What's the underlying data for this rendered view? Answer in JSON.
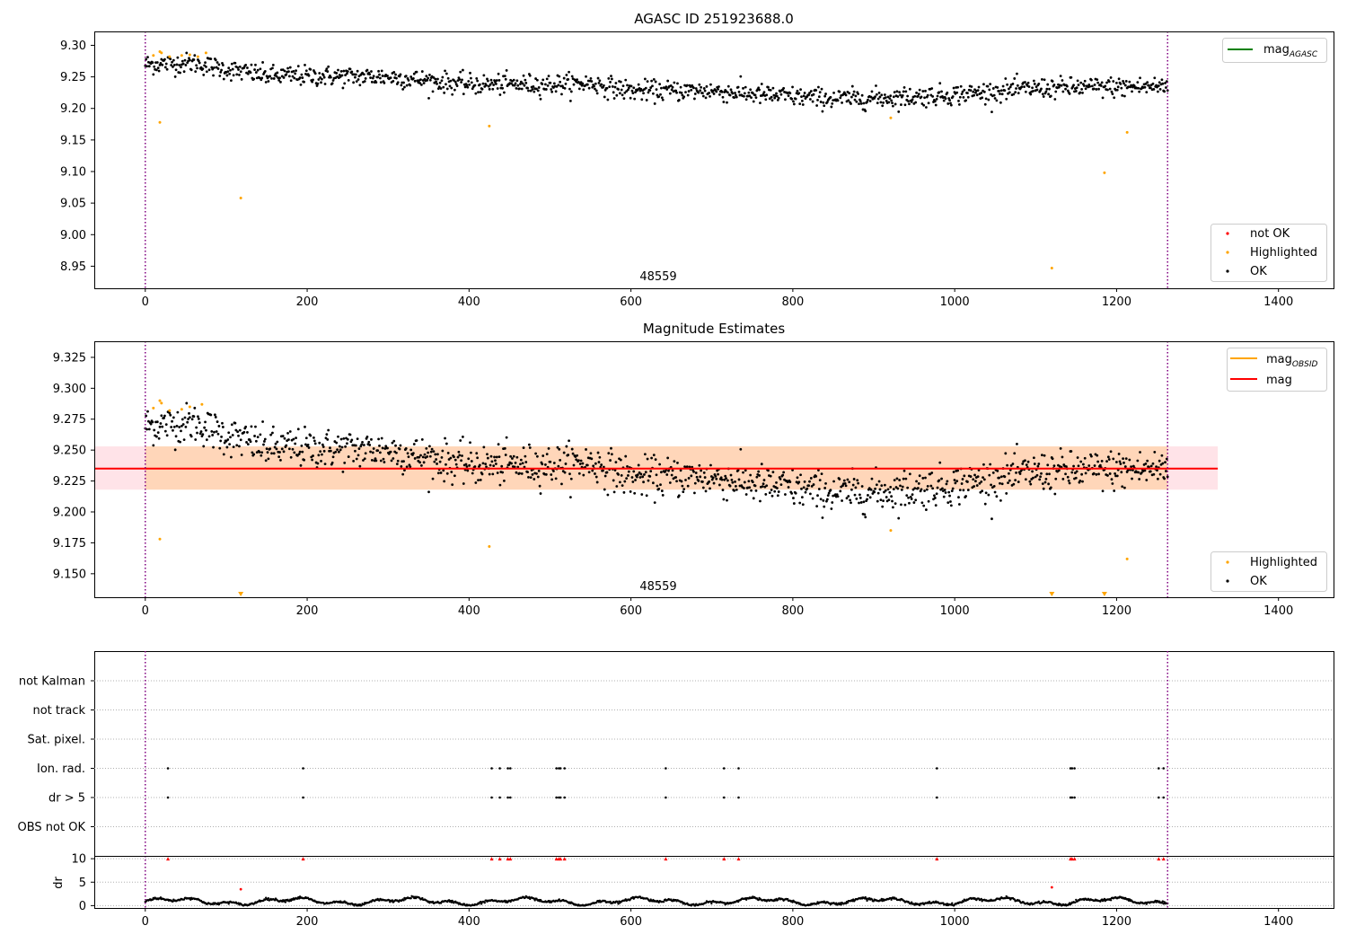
{
  "chart_data": [
    {
      "type": "scatter",
      "title": "AGASC ID 251923688.0",
      "annotation": "48559",
      "xlim": [
        -63,
        1468
      ],
      "ylim": [
        8.915,
        9.322
      ],
      "xticks": [
        0,
        200,
        400,
        600,
        800,
        1000,
        1200,
        1400
      ],
      "xticklabels": [
        "0",
        "200",
        "400",
        "600",
        "800",
        "1000",
        "1200",
        "1400"
      ],
      "yticks": [
        8.95,
        9.0,
        9.05,
        9.1,
        9.15,
        9.2,
        9.25,
        9.3
      ],
      "yticklabels": [
        "8.95",
        "9.00",
        "9.05",
        "9.10",
        "9.15",
        "9.20",
        "9.25",
        "9.30"
      ],
      "vlines": [
        0,
        1263
      ],
      "legend_top": [
        {
          "name": "mag",
          "subscript": "AGASC",
          "color": "#008000",
          "kind": "line"
        }
      ],
      "legend_bottom": [
        {
          "name": "not OK",
          "color": "#ff0000",
          "kind": "dot"
        },
        {
          "name": "Highlighted",
          "color": "#ffa500",
          "kind": "dot"
        },
        {
          "name": "OK",
          "color": "#000000",
          "kind": "dot"
        }
      ],
      "ok_series": {
        "name": "OK",
        "n_points": 1263,
        "x_range": [
          0,
          1263
        ],
        "trend_knots": [
          [
            0,
            9.27
          ],
          [
            60,
            9.272
          ],
          [
            100,
            9.262
          ],
          [
            150,
            9.252
          ],
          [
            300,
            9.25
          ],
          [
            400,
            9.238
          ],
          [
            500,
            9.238
          ],
          [
            550,
            9.24
          ],
          [
            600,
            9.228
          ],
          [
            700,
            9.228
          ],
          [
            780,
            9.22
          ],
          [
            860,
            9.215
          ],
          [
            940,
            9.218
          ],
          [
            1000,
            9.222
          ],
          [
            1100,
            9.232
          ],
          [
            1263,
            9.235
          ]
        ],
        "scatter_sd": 0.008
      },
      "highlighted_points": {
        "x": [
          10,
          18,
          20,
          30,
          45,
          55,
          65,
          75,
          18,
          118,
          425,
          921,
          1120,
          1185,
          1213
        ],
        "y": [
          9.284,
          9.29,
          9.288,
          9.282,
          9.284,
          9.285,
          9.282,
          9.288,
          9.178,
          9.058,
          9.172,
          9.185,
          8.947,
          9.098,
          9.162
        ]
      },
      "not_ok_points": {
        "x": [],
        "y": []
      }
    },
    {
      "type": "scatter",
      "title": "Magnitude Estimates",
      "annotation": "48559",
      "xlim": [
        -63,
        1468
      ],
      "ylim": [
        9.131,
        9.338
      ],
      "xticks": [
        0,
        200,
        400,
        600,
        800,
        1000,
        1200,
        1400
      ],
      "xticklabels": [
        "0",
        "200",
        "400",
        "600",
        "800",
        "1000",
        "1200",
        "1400"
      ],
      "yticks": [
        9.15,
        9.175,
        9.2,
        9.225,
        9.25,
        9.275,
        9.3,
        9.325
      ],
      "yticklabels": [
        "9.150",
        "9.175",
        "9.200",
        "9.225",
        "9.250",
        "9.275",
        "9.300",
        "9.325"
      ],
      "vlines": [
        0,
        1263
      ],
      "mag_line": 9.235,
      "mag_band_outer": {
        "x": [
          -63,
          1325
        ],
        "y": [
          9.218,
          9.253
        ],
        "color": "#ffc0cb"
      },
      "mag_obsid_band": {
        "x": [
          0,
          1263
        ],
        "y": [
          9.218,
          9.253
        ],
        "color": "#ffa500"
      },
      "legend_top": [
        {
          "name": "mag",
          "subscript": "OBSID",
          "color": "#ffa500",
          "kind": "line"
        },
        {
          "name": "mag",
          "color": "#ff0000",
          "kind": "line"
        }
      ],
      "legend_bottom": [
        {
          "name": "Highlighted",
          "color": "#ffa500",
          "kind": "dot"
        },
        {
          "name": "OK",
          "color": "#000000",
          "kind": "dot"
        }
      ],
      "highlighted_points": {
        "x": [
          10,
          18,
          20,
          30,
          45,
          55,
          70,
          18,
          425,
          921,
          1213
        ],
        "y": [
          9.284,
          9.29,
          9.288,
          9.282,
          9.283,
          9.285,
          9.287,
          9.178,
          9.172,
          9.185,
          9.162
        ]
      },
      "offscale_markers": {
        "x": [
          118,
          1120,
          1185
        ],
        "color": "#ffa500"
      }
    },
    {
      "type": "scatter",
      "title": "",
      "xlim": [
        -63,
        1468
      ],
      "categories": [
        "not Kalman",
        "not track",
        "Sat. pixel.",
        "Ion. rad.",
        "dr > 5",
        "OBS not OK"
      ],
      "flag_points": {
        "Ion. rad.": [
          28,
          195,
          428,
          438,
          448,
          451,
          508,
          511,
          513,
          518,
          643,
          715,
          733,
          978,
          1143,
          1145,
          1148,
          1252,
          1258
        ],
        "dr > 5": [
          28,
          195,
          428,
          438,
          448,
          451,
          508,
          511,
          513,
          518,
          643,
          715,
          733,
          978,
          1143,
          1145,
          1148,
          1252,
          1258
        ]
      },
      "vlines": [
        0,
        1263
      ]
    },
    {
      "type": "scatter",
      "title": "",
      "ylabel": "dr",
      "xlim": [
        -63,
        1468
      ],
      "ylim": [
        -0.5,
        10.6
      ],
      "xticks": [
        0,
        200,
        400,
        600,
        800,
        1000,
        1200,
        1400
      ],
      "xticklabels": [
        "0",
        "200",
        "400",
        "600",
        "800",
        "1000",
        "1200",
        "1400"
      ],
      "yticks": [
        0,
        5,
        10
      ],
      "yticklabels": [
        "0",
        "5",
        "10"
      ],
      "vlines": [
        0,
        1263
      ],
      "dr_series": {
        "name": "dr",
        "n_points": 1263,
        "baseline": 0.9,
        "amplitude": 0.9
      },
      "capped_points": {
        "x": [
          28,
          195,
          428,
          438,
          448,
          451,
          508,
          511,
          513,
          518,
          643,
          715,
          733,
          978,
          1143,
          1145,
          1148,
          1252,
          1258
        ],
        "y": 10,
        "color": "#ff0000"
      },
      "red_points": {
        "x": [
          118,
          1120
        ],
        "y": [
          3.5,
          3.9
        ]
      }
    }
  ]
}
